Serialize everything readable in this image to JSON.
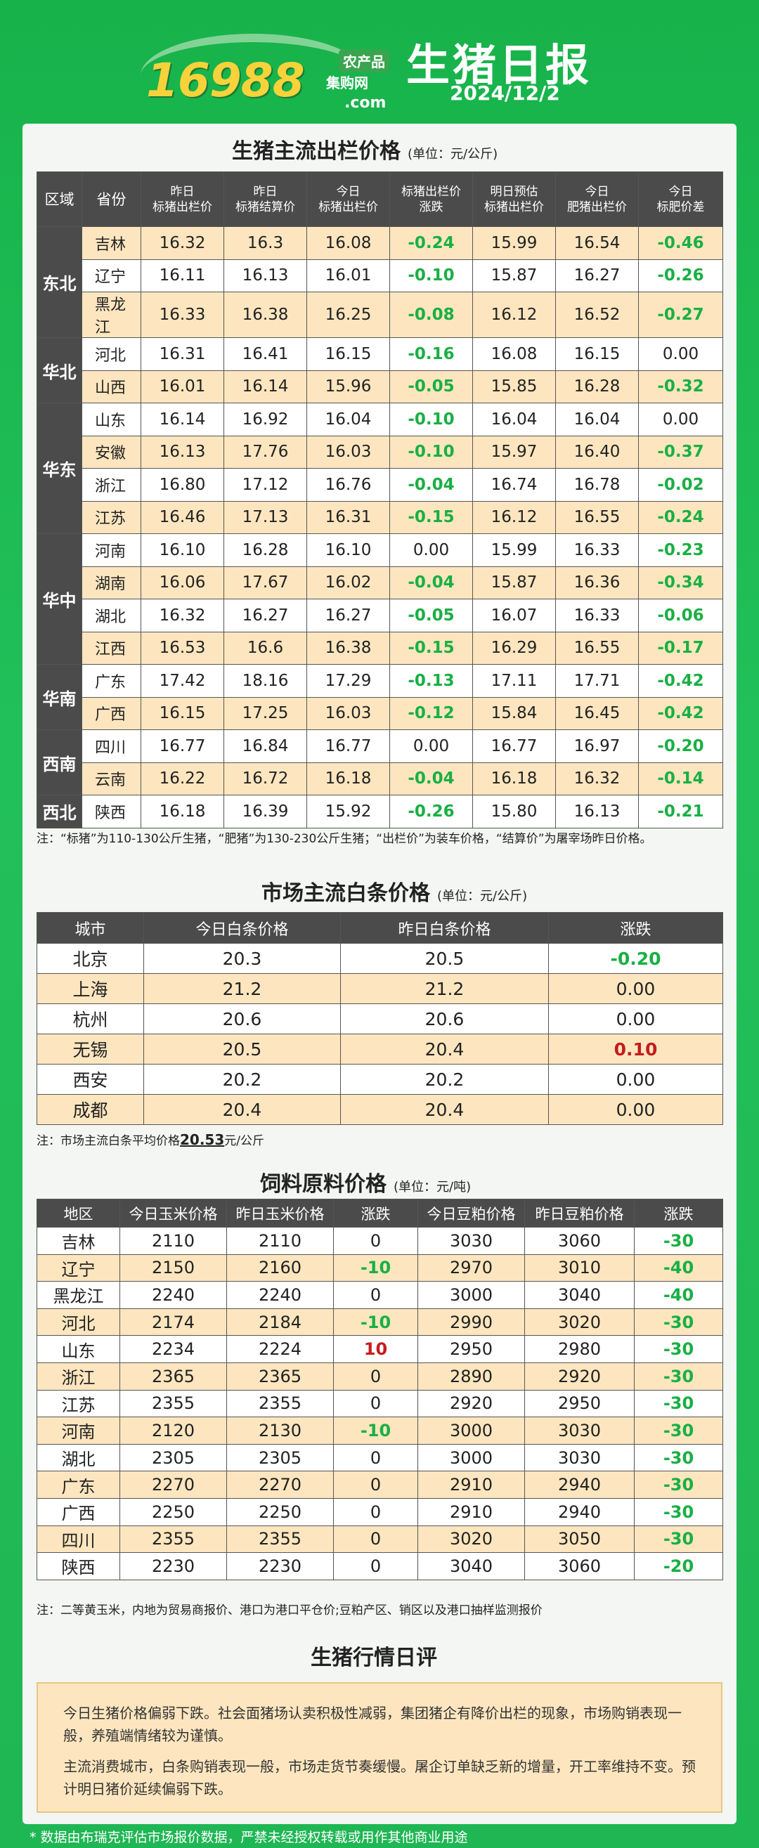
{
  "header": {
    "logo_number": "16988",
    "logo_sub1": "农产品",
    "logo_sub2": "集购网",
    "logo_com": ".com",
    "title": "生猪日报",
    "date": "2024/12/2"
  },
  "section1": {
    "title": "生猪主流出栏价格",
    "unit": "(单位：元/公斤)",
    "headers": [
      "区域",
      "省份",
      "昨日\n标猪出栏价",
      "昨日\n标猪结算价",
      "今日\n标猪出栏价",
      "标猪出栏价\n涨跌",
      "明日预估\n标猪出栏价",
      "今日\n肥猪出栏价",
      "今日\n标肥价差"
    ],
    "rows": [
      {
        "region": "东北",
        "span": 3,
        "prov": "吉林",
        "v": [
          "16.32",
          "16.3",
          "16.08",
          "-0.24",
          "15.99",
          "16.54",
          "-0.46"
        ]
      },
      {
        "prov": "辽宁",
        "v": [
          "16.11",
          "16.13",
          "16.01",
          "-0.10",
          "15.87",
          "16.27",
          "-0.26"
        ]
      },
      {
        "prov": "黑龙江",
        "v": [
          "16.33",
          "16.38",
          "16.25",
          "-0.08",
          "16.12",
          "16.52",
          "-0.27"
        ]
      },
      {
        "region": "华北",
        "span": 2,
        "prov": "河北",
        "v": [
          "16.31",
          "16.41",
          "16.15",
          "-0.16",
          "16.08",
          "16.15",
          "0.00"
        ]
      },
      {
        "prov": "山西",
        "v": [
          "16.01",
          "16.14",
          "15.96",
          "-0.05",
          "15.85",
          "16.28",
          "-0.32"
        ]
      },
      {
        "region": "华东",
        "span": 4,
        "prov": "山东",
        "v": [
          "16.14",
          "16.92",
          "16.04",
          "-0.10",
          "16.04",
          "16.04",
          "0.00"
        ]
      },
      {
        "prov": "安徽",
        "v": [
          "16.13",
          "17.76",
          "16.03",
          "-0.10",
          "15.97",
          "16.40",
          "-0.37"
        ]
      },
      {
        "prov": "浙江",
        "v": [
          "16.80",
          "17.12",
          "16.76",
          "-0.04",
          "16.74",
          "16.78",
          "-0.02"
        ]
      },
      {
        "prov": "江苏",
        "v": [
          "16.46",
          "17.13",
          "16.31",
          "-0.15",
          "16.12",
          "16.55",
          "-0.24"
        ]
      },
      {
        "region": "华中",
        "span": 4,
        "prov": "河南",
        "v": [
          "16.10",
          "16.28",
          "16.10",
          "0.00",
          "15.99",
          "16.33",
          "-0.23"
        ]
      },
      {
        "prov": "湖南",
        "v": [
          "16.06",
          "17.67",
          "16.02",
          "-0.04",
          "15.87",
          "16.36",
          "-0.34"
        ]
      },
      {
        "prov": "湖北",
        "v": [
          "16.32",
          "16.27",
          "16.27",
          "-0.05",
          "16.07",
          "16.33",
          "-0.06"
        ]
      },
      {
        "prov": "江西",
        "v": [
          "16.53",
          "16.6",
          "16.38",
          "-0.15",
          "16.29",
          "16.55",
          "-0.17"
        ]
      },
      {
        "region": "华南",
        "span": 2,
        "prov": "广东",
        "v": [
          "17.42",
          "18.16",
          "17.29",
          "-0.13",
          "17.11",
          "17.71",
          "-0.42"
        ]
      },
      {
        "prov": "广西",
        "v": [
          "16.15",
          "17.25",
          "16.03",
          "-0.12",
          "15.84",
          "16.45",
          "-0.42"
        ]
      },
      {
        "region": "西南",
        "span": 2,
        "prov": "四川",
        "v": [
          "16.77",
          "16.84",
          "16.77",
          "0.00",
          "16.77",
          "16.97",
          "-0.20"
        ]
      },
      {
        "prov": "云南",
        "v": [
          "16.22",
          "16.72",
          "16.18",
          "-0.04",
          "16.18",
          "16.32",
          "-0.14"
        ]
      },
      {
        "region": "西北",
        "span": 1,
        "prov": "陕西",
        "v": [
          "16.18",
          "16.39",
          "15.92",
          "-0.26",
          "15.80",
          "16.13",
          "-0.21"
        ]
      }
    ],
    "note": "注：“标猪”为110-130公斤生猪，“肥猪”为130-230公斤生猪；“出栏价”为装车价格，“结算价”为屠宰场昨日价格。"
  },
  "section2": {
    "title": "市场主流白条价格",
    "unit": "(单位：元/公斤)",
    "headers": [
      "城市",
      "今日白条价格",
      "昨日白条价格",
      "涨跌"
    ],
    "rows": [
      [
        "北京",
        "20.3",
        "20.5",
        "-0.20"
      ],
      [
        "上海",
        "21.2",
        "21.2",
        "0.00"
      ],
      [
        "杭州",
        "20.6",
        "20.6",
        "0.00"
      ],
      [
        "无锡",
        "20.5",
        "20.4",
        "0.10"
      ],
      [
        "西安",
        "20.2",
        "20.2",
        "0.00"
      ],
      [
        "成都",
        "20.4",
        "20.4",
        "0.00"
      ]
    ],
    "note_prefix": "注：市场主流白条平均价格",
    "note_value": "20.53",
    "note_suffix": "元/公斤"
  },
  "section3": {
    "title": "饲料原料价格",
    "unit": "(单位：元/吨)",
    "headers": [
      "地区",
      "今日玉米价格",
      "昨日玉米价格",
      "涨跌",
      "今日豆粕价格",
      "昨日豆粕价格",
      "涨跌"
    ],
    "rows": [
      [
        "吉林",
        "2110",
        "2110",
        "0",
        "3030",
        "3060",
        "-30"
      ],
      [
        "辽宁",
        "2150",
        "2160",
        "-10",
        "2970",
        "3010",
        "-40"
      ],
      [
        "黑龙江",
        "2240",
        "2240",
        "0",
        "3000",
        "3040",
        "-40"
      ],
      [
        "河北",
        "2174",
        "2184",
        "-10",
        "2990",
        "3020",
        "-30"
      ],
      [
        "山东",
        "2234",
        "2224",
        "10",
        "2950",
        "2980",
        "-30"
      ],
      [
        "浙江",
        "2365",
        "2365",
        "0",
        "2890",
        "2920",
        "-30"
      ],
      [
        "江苏",
        "2355",
        "2355",
        "0",
        "2920",
        "2950",
        "-30"
      ],
      [
        "河南",
        "2120",
        "2130",
        "-10",
        "3000",
        "3030",
        "-30"
      ],
      [
        "湖北",
        "2305",
        "2305",
        "0",
        "3000",
        "3030",
        "-30"
      ],
      [
        "广东",
        "2270",
        "2270",
        "0",
        "2910",
        "2940",
        "-30"
      ],
      [
        "广西",
        "2250",
        "2250",
        "0",
        "2910",
        "2940",
        "-30"
      ],
      [
        "四川",
        "2355",
        "2355",
        "0",
        "3020",
        "3050",
        "-30"
      ],
      [
        "陕西",
        "2230",
        "2230",
        "0",
        "3040",
        "3060",
        "-20"
      ]
    ],
    "note": "注：二等黄玉米，内地为贸易商报价、港口为港口平仓价;豆粕产区、销区以及港口抽样监测报价"
  },
  "section4": {
    "title": "生猪行情日评",
    "p1": "今日生猪价格偏弱下跌。社会面猪场认卖积极性减弱，集团猪企有降价出栏的现象，市场购销表现一般，养殖端情绪较为谨慎。",
    "p2": "主流消费城市，白条购销表现一般，市场走货节奏缓慢。屠企订单缺乏新的增量，开工率维持不变。预计明日猪价延续偏弱下跌。"
  },
  "footer": "* 数据由布瑞克评估市场报价数据，严禁未经授权转载或用作其他商业用途"
}
